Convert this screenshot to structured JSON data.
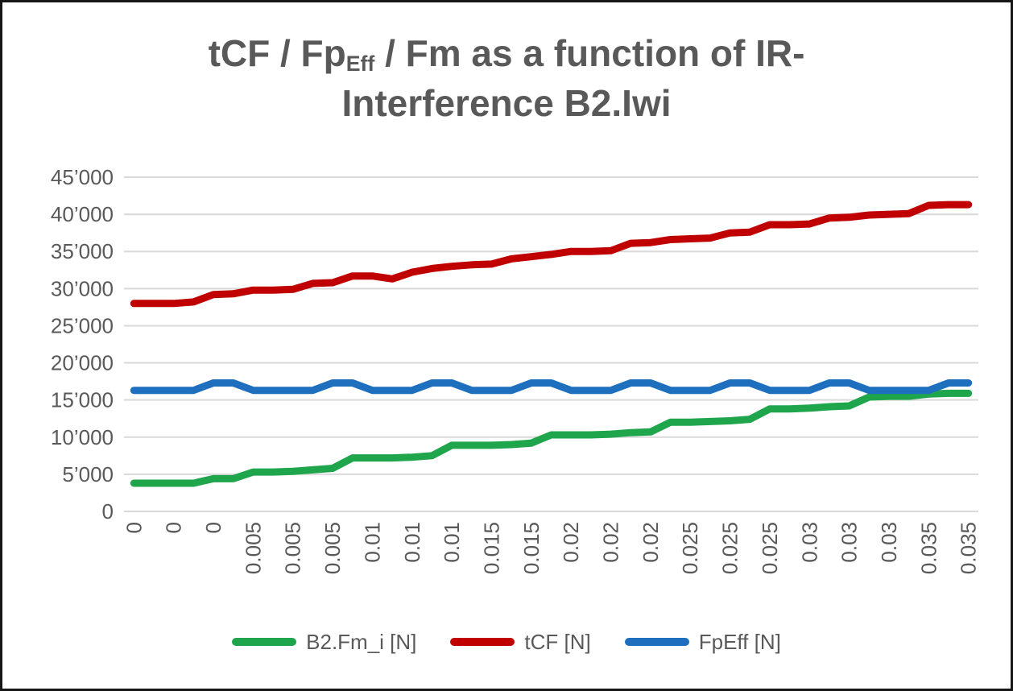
{
  "title": {
    "part1": "tCF / Fp",
    "subscript": "Eff",
    "part2": " / Fm as a function of IR-",
    "line2": "Interference B2.Iwi"
  },
  "colors": {
    "background": "#FFFFFF",
    "border": "#161616",
    "title": "#595959",
    "axis_labels": "#595959",
    "gridline": "#D9D9D9",
    "series_green": "#1FA54C",
    "series_red": "#C00000",
    "series_blue": "#1E6FBE"
  },
  "chart_data": {
    "type": "line",
    "title": "tCF / FpEff / Fm as a function of IR-Interference B2.Iwi",
    "xlabel": "",
    "ylabel": "",
    "grid": true,
    "legend_position": "bottom",
    "y_axis": {
      "min": 0,
      "max": 45000,
      "step": 5000,
      "tick_labels": [
        "0",
        "5’000",
        "10’000",
        "15’000",
        "20’000",
        "25’000",
        "30’000",
        "35’000",
        "40’000",
        "45’000"
      ]
    },
    "x_axis": {
      "labels": [
        "0",
        "0",
        "0",
        "0.005",
        "0.005",
        "0.005",
        "0.01",
        "0.01",
        "0.01",
        "0.015",
        "0.015",
        "0.02",
        "0.02",
        "0.02",
        "0.025",
        "0.025",
        "0.025",
        "0.03",
        "0.03",
        "0.03",
        "0.035",
        "0.035"
      ],
      "label_rotation_deg": -90,
      "points_per_label": 2
    },
    "series": [
      {
        "name": "B2.Fm_i [N]",
        "color_key": "series_green",
        "values": [
          3800,
          3800,
          3800,
          3800,
          4400,
          4400,
          5300,
          5300,
          5400,
          5600,
          5800,
          7200,
          7200,
          7200,
          7300,
          7500,
          8900,
          8900,
          8900,
          9000,
          9200,
          10300,
          10300,
          10300,
          10400,
          10600,
          10700,
          12000,
          12000,
          12100,
          12200,
          12400,
          13800,
          13800,
          13900,
          14100,
          14200,
          15400,
          15500,
          15500,
          15800,
          15900,
          15900
        ]
      },
      {
        "name": "tCF [N]",
        "color_key": "series_red",
        "values": [
          28000,
          28000,
          28000,
          28200,
          29200,
          29300,
          29800,
          29800,
          29900,
          30700,
          30800,
          31700,
          31700,
          31300,
          32200,
          32700,
          33000,
          33200,
          33300,
          34000,
          34300,
          34600,
          35000,
          35000,
          35100,
          36100,
          36200,
          36600,
          36700,
          36800,
          37500,
          37600,
          38600,
          38600,
          38700,
          39500,
          39600,
          39900,
          40000,
          40100,
          41200,
          41300,
          41300
        ]
      },
      {
        "name": "FpEff [N]",
        "color_key": "series_blue",
        "values": [
          16300,
          16300,
          16300,
          16300,
          17300,
          17300,
          16300,
          16300,
          16300,
          16300,
          17300,
          17300,
          16300,
          16300,
          16300,
          17300,
          17300,
          16300,
          16300,
          16300,
          17300,
          17300,
          16300,
          16300,
          16300,
          17300,
          17300,
          16300,
          16300,
          16300,
          17300,
          17300,
          16300,
          16300,
          16300,
          17300,
          17300,
          16300,
          16300,
          16300,
          16300,
          17300,
          17300
        ]
      }
    ]
  }
}
